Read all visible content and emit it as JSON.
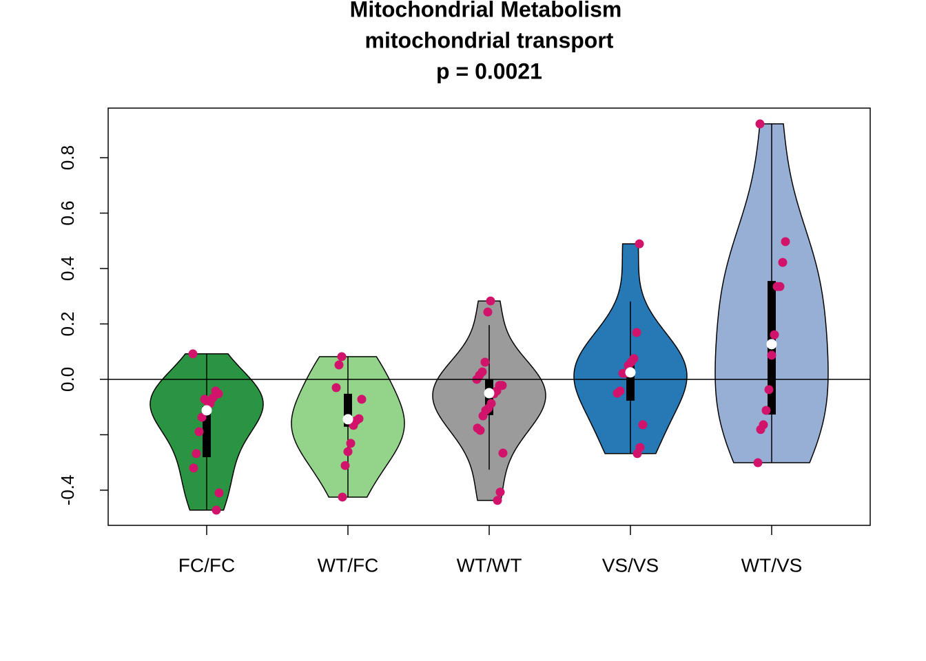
{
  "chart_data": {
    "type": "violin",
    "title": [
      "Mitochondrial Metabolism",
      "mitochondrial transport",
      "p = 0.0021"
    ],
    "categories": [
      "FC/FC",
      "WT/FC",
      "WT/WT",
      "VS/VS",
      "WT/VS"
    ],
    "colors": [
      "#2a9442",
      "#94d48a",
      "#9b9b9b",
      "#2679b4",
      "#97afd5"
    ],
    "point_color": "#d1136b",
    "groups": [
      {
        "points": [
          0.092,
          -0.052,
          -0.042,
          -0.067,
          -0.087,
          -0.08,
          -0.072,
          -0.137,
          -0.189,
          -0.268,
          -0.32,
          -0.41,
          -0.472
        ],
        "median": -0.112,
        "q1": -0.281,
        "q3": -0.097,
        "whisker_low": -0.472,
        "whisker_high": 0.092
      },
      {
        "points": [
          0.082,
          0.052,
          -0.03,
          -0.072,
          -0.142,
          -0.149,
          -0.166,
          -0.231,
          -0.261,
          -0.311,
          -0.425
        ],
        "median": -0.144,
        "q1": -0.171,
        "q3": -0.052,
        "whisker_low": -0.425,
        "whisker_high": 0.082
      },
      {
        "points": [
          0.283,
          0.243,
          0.062,
          0.027,
          0.015,
          0.0,
          -0.022,
          -0.022,
          -0.042,
          -0.052,
          -0.087,
          -0.104,
          -0.112,
          -0.132,
          -0.184,
          -0.176,
          -0.266,
          -0.407,
          -0.437
        ],
        "median": -0.05,
        "q1": -0.129,
        "q3": 0.0,
        "whisker_low": -0.326,
        "whisker_high": 0.196
      },
      {
        "points": [
          0.489,
          0.169,
          0.075,
          0.062,
          0.05,
          0.022,
          0.022,
          -0.042,
          -0.05,
          -0.164,
          -0.246,
          -0.268
        ],
        "median": 0.025,
        "q1": -0.077,
        "q3": 0.065,
        "whisker_low": -0.268,
        "whisker_high": 0.281
      },
      {
        "points": [
          0.922,
          0.497,
          0.422,
          0.335,
          0.335,
          0.161,
          0.087,
          -0.037,
          -0.112,
          -0.164,
          -0.181,
          -0.301
        ],
        "median": 0.127,
        "q1": -0.127,
        "q3": 0.355,
        "whisker_low": -0.301,
        "whisker_high": 0.922
      }
    ],
    "hline": 0,
    "ylim": [
      -0.527,
      0.979
    ],
    "yticks": [
      {
        "value": -0.4,
        "label": "-0.4"
      },
      {
        "value": -0.2,
        "label": null
      },
      {
        "value": 0,
        "label": "0.0"
      },
      {
        "value": 0.2,
        "label": "0.2"
      },
      {
        "value": 0.4,
        "label": "0.4"
      },
      {
        "value": 0.6,
        "label": "0.6"
      },
      {
        "value": 0.8,
        "label": "0.8"
      }
    ]
  }
}
